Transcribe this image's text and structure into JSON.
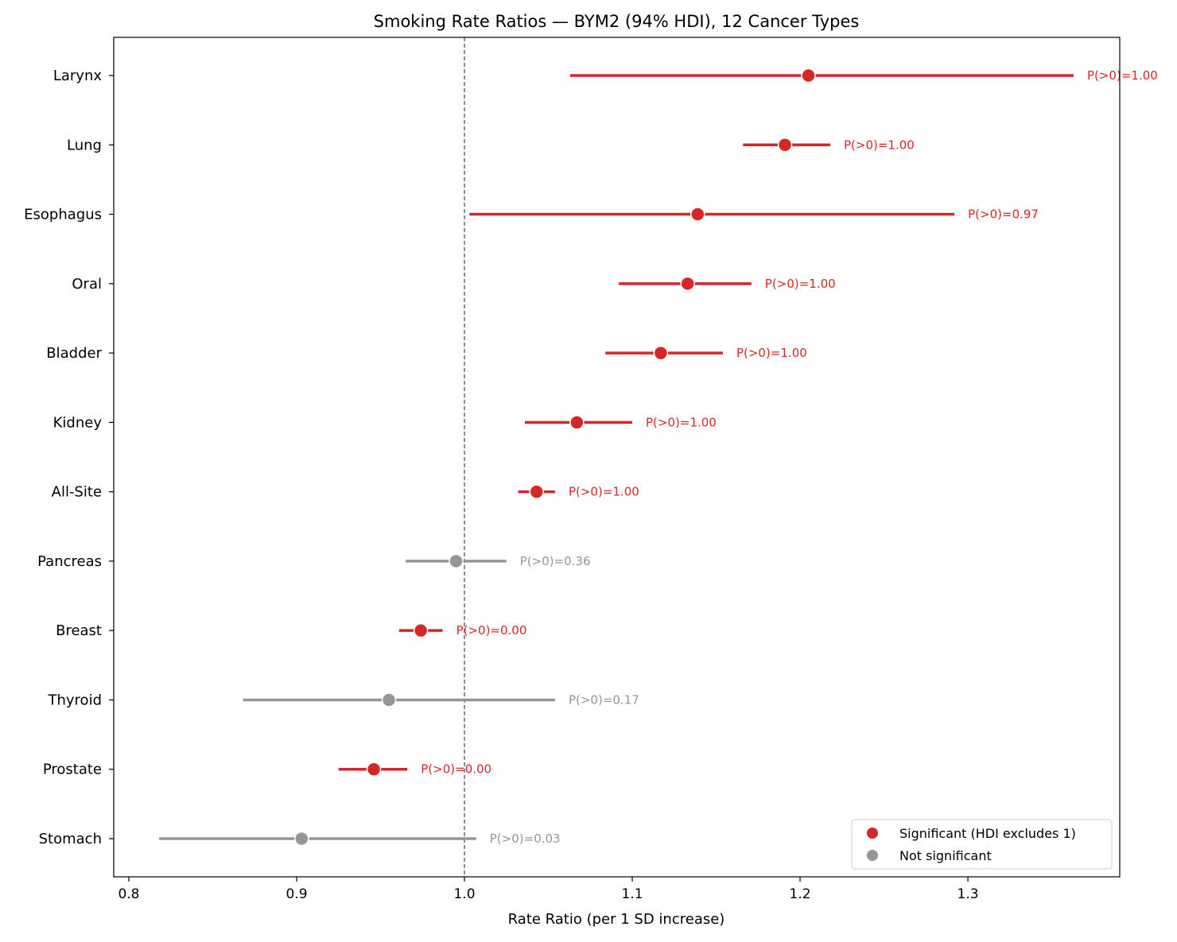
{
  "chart_data": {
    "type": "forest",
    "title": "Smoking Rate Ratios — BYM2 (94% HDI), 12 Cancer Types",
    "xlabel": "Rate Ratio (per 1 SD increase)",
    "ylabel": "",
    "xlim": [
      0.791,
      1.3905
    ],
    "xticks": [
      "0.8",
      "0.9",
      "1.0",
      "1.1",
      "1.2",
      "1.3"
    ],
    "reference_line": 1.0,
    "grid": false,
    "legend_position": "bottom-right",
    "legend": [
      {
        "label": "Significant (HDI excludes 1)",
        "color": "#d62728"
      },
      {
        "label": "Not significant",
        "color": "#969696"
      }
    ],
    "rows": [
      {
        "label": "Larynx",
        "estimate": 1.205,
        "lower": 1.063,
        "upper": 1.363,
        "significant": true,
        "annotation": "P(>0)=1.00"
      },
      {
        "label": "Lung",
        "estimate": 1.191,
        "lower": 1.166,
        "upper": 1.218,
        "significant": true,
        "annotation": "P(>0)=1.00"
      },
      {
        "label": "Esophagus",
        "estimate": 1.139,
        "lower": 1.003,
        "upper": 1.292,
        "significant": true,
        "annotation": "P(>0)=0.97"
      },
      {
        "label": "Oral",
        "estimate": 1.133,
        "lower": 1.092,
        "upper": 1.171,
        "significant": true,
        "annotation": "P(>0)=1.00"
      },
      {
        "label": "Bladder",
        "estimate": 1.117,
        "lower": 1.084,
        "upper": 1.154,
        "significant": true,
        "annotation": "P(>0)=1.00"
      },
      {
        "label": "Kidney",
        "estimate": 1.067,
        "lower": 1.036,
        "upper": 1.1,
        "significant": true,
        "annotation": "P(>0)=1.00"
      },
      {
        "label": "All-Site",
        "estimate": 1.043,
        "lower": 1.032,
        "upper": 1.054,
        "significant": true,
        "annotation": "P(>0)=1.00"
      },
      {
        "label": "Pancreas",
        "estimate": 0.995,
        "lower": 0.965,
        "upper": 1.025,
        "significant": false,
        "annotation": "P(>0)=0.36"
      },
      {
        "label": "Breast",
        "estimate": 0.974,
        "lower": 0.961,
        "upper": 0.987,
        "significant": true,
        "annotation": "P(>0)=0.00"
      },
      {
        "label": "Thyroid",
        "estimate": 0.955,
        "lower": 0.868,
        "upper": 1.054,
        "significant": false,
        "annotation": "P(>0)=0.17"
      },
      {
        "label": "Prostate",
        "estimate": 0.946,
        "lower": 0.925,
        "upper": 0.966,
        "significant": true,
        "annotation": "P(>0)=0.00"
      },
      {
        "label": "Stomach",
        "estimate": 0.903,
        "lower": 0.818,
        "upper": 1.007,
        "significant": false,
        "annotation": "P(>0)=0.03"
      }
    ]
  }
}
